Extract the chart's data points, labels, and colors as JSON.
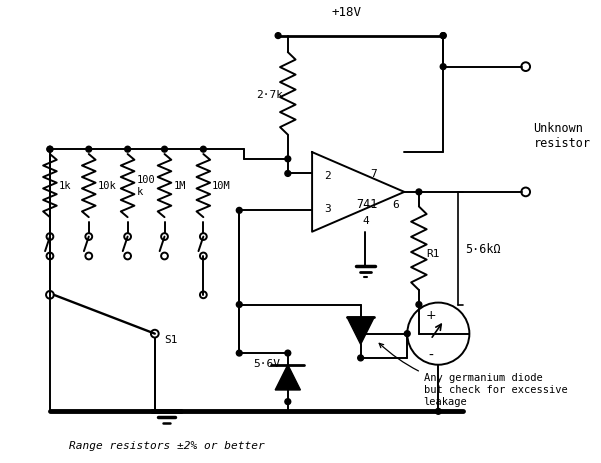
{
  "bg_color": "#ffffff",
  "line_color": "#000000",
  "lw": 1.4,
  "labels": {
    "plus18v": "+18V",
    "r_27k": "2·7k",
    "r1": "R1",
    "r_56k": "5·6kΩ",
    "r_56v": "5·6V",
    "unknown": "Unknown\nresistor",
    "s1": "S1",
    "range_res": "Range resistors ±2% or better",
    "res_1k": "1k",
    "res_10k": "10k",
    "res_100k": "100\nk",
    "res_1M": "1M",
    "res_10M": "10M",
    "ic_label": "741",
    "pin2": "2",
    "pin3": "3",
    "pin4": "4",
    "pin6": "6",
    "pin7": "7",
    "germanium": "Any germanium diode\nbut check for excessive\nleakage"
  }
}
